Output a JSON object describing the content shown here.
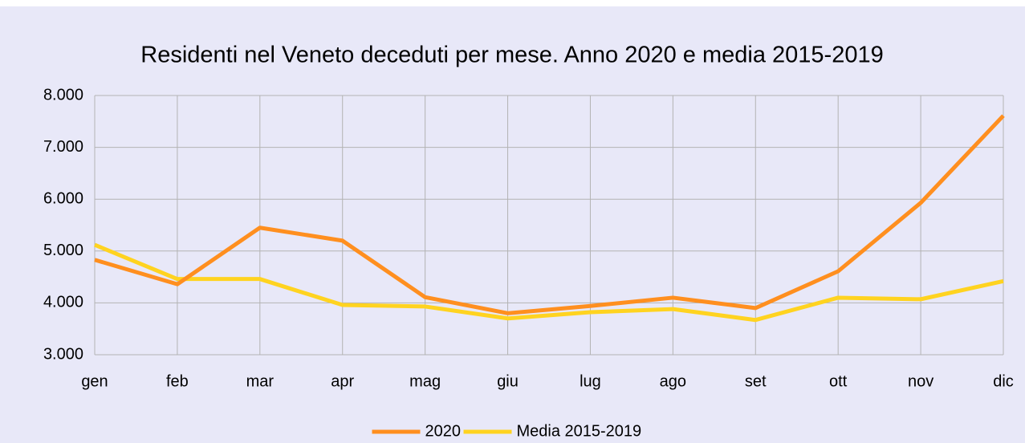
{
  "chart_data": {
    "type": "line",
    "title": "Residenti nel Veneto deceduti per mese. Anno 2020 e media 2015-2019",
    "categories": [
      "gen",
      "feb",
      "mar",
      "apr",
      "mag",
      "giu",
      "lug",
      "ago",
      "set",
      "ott",
      "nov",
      "dic"
    ],
    "series": [
      {
        "name": "2020",
        "color": "#ff8f1f",
        "values": [
          4830,
          4360,
          5450,
          5200,
          4110,
          3800,
          3940,
          4100,
          3900,
          4610,
          5930,
          7610
        ]
      },
      {
        "name": "Media 2015-2019",
        "color": "#ffd320",
        "values": [
          5120,
          4460,
          4460,
          3960,
          3930,
          3700,
          3820,
          3880,
          3670,
          4100,
          4070,
          4420
        ]
      }
    ],
    "ylim": [
      3000,
      8000
    ],
    "yticks": [
      {
        "value": 3000,
        "label": "3.000"
      },
      {
        "value": 4000,
        "label": "4.000"
      },
      {
        "value": 5000,
        "label": "5.000"
      },
      {
        "value": 6000,
        "label": "6.000"
      },
      {
        "value": 7000,
        "label": "7.000"
      },
      {
        "value": 8000,
        "label": "8.000"
      }
    ],
    "grid": true,
    "legend": "bottom"
  }
}
